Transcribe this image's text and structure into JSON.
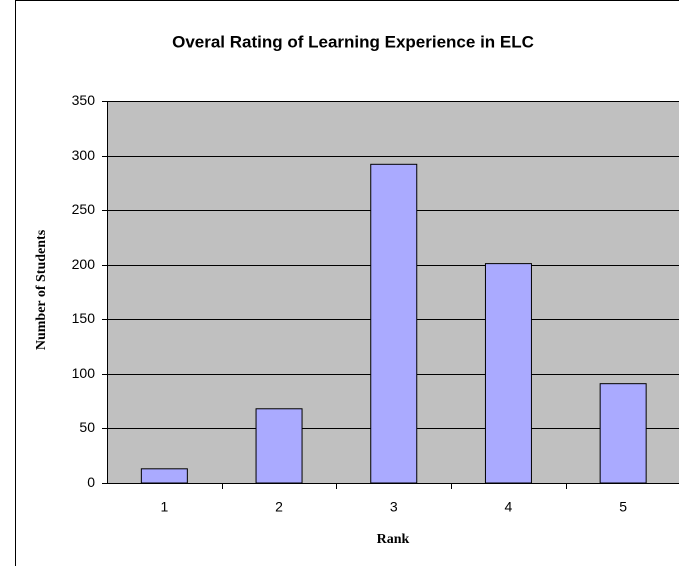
{
  "chart_data": {
    "type": "bar",
    "title": "Overal Rating of Learning Experience in ELC",
    "x_label": "Rank",
    "y_label": "Number of Students",
    "categories": [
      "1",
      "2",
      "3",
      "4",
      "5"
    ],
    "values": [
      13,
      68,
      292,
      201,
      91
    ],
    "color": "#aaaaff",
    "ylim": [
      0,
      350
    ],
    "yticks": [
      0,
      50,
      100,
      150,
      200,
      250,
      300,
      350
    ],
    "grid": true
  }
}
